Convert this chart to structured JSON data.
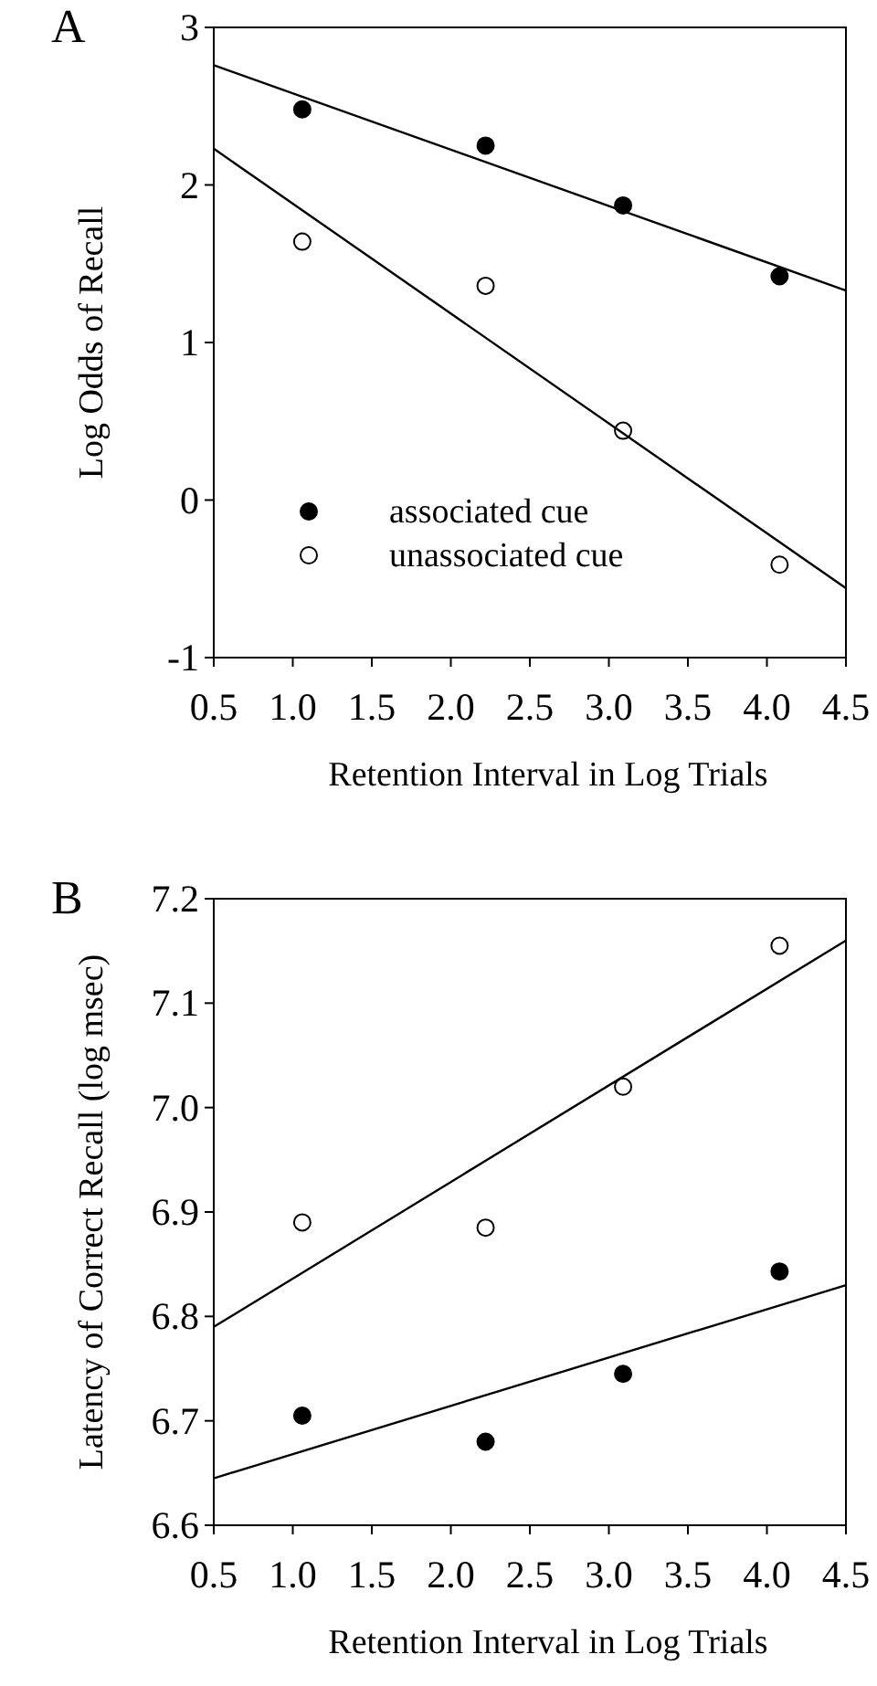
{
  "chart_data": [
    {
      "type": "scatter",
      "title": "A",
      "xlabel": "Retention Interval in Log Trials",
      "ylabel": "Log Odds of Recall",
      "xlim": [
        0.5,
        4.5
      ],
      "xticks": [
        0.5,
        {
          "value": 1,
          "label": "1.0"
        },
        1.5,
        {
          "value": 2,
          "label": "2.0"
        },
        2.5,
        {
          "value": 3,
          "label": "3.0"
        },
        3.5,
        {
          "value": 4,
          "label": "4.0"
        },
        4.5
      ],
      "ylim": [
        -1,
        3
      ],
      "yticks": [
        -1,
        0,
        1,
        2,
        3
      ],
      "grid": false,
      "legend": "bottom left",
      "marker": "circle",
      "series": [
        {
          "name": "associated cue",
          "color": "#000000",
          "x": [
            1.06,
            2.22,
            3.09,
            4.08
          ],
          "values": [
            2.48,
            2.25,
            1.87,
            1.42
          ]
        },
        {
          "name": "unassociated cue",
          "color": "#ffffff",
          "x": [
            1.06,
            2.22,
            3.09,
            4.08
          ],
          "values": [
            1.64,
            1.36,
            0.44,
            -0.41
          ]
        },
        {
          "type": "line",
          "color": "#000000",
          "marker": "none",
          "line_style": "solid",
          "x": [
            0.5,
            4.5
          ],
          "values": [
            2.76,
            1.33
          ]
        },
        {
          "type": "line",
          "color": "#000000",
          "marker": "none",
          "line_style": "solid",
          "x": [
            0.5,
            4.5
          ],
          "values": [
            2.23,
            -0.56
          ]
        }
      ]
    },
    {
      "type": "scatter",
      "title": "B",
      "xlabel": "Retention Interval in Log Trials",
      "ylabel": "Latency of Correct Recall (log msec)",
      "xlim": [
        0.5,
        4.5
      ],
      "xticks": [
        0.5,
        {
          "value": 1,
          "label": "1.0"
        },
        1.5,
        {
          "value": 2,
          "label": "2.0"
        },
        2.5,
        {
          "value": 3,
          "label": "3.0"
        },
        3.5,
        {
          "value": 4,
          "label": "4.0"
        },
        4.5
      ],
      "ylim": [
        6.6,
        7.2
      ],
      "yticks": [
        6.6,
        6.7,
        6.8,
        6.9,
        {
          "value": 7,
          "label": "7.0"
        },
        7.1,
        7.2
      ],
      "grid": false,
      "legend": false,
      "marker": "circle",
      "series": [
        {
          "color": "#000000",
          "x": [
            1.06,
            2.22,
            3.09,
            4.08
          ],
          "values": [
            6.705,
            6.68,
            6.745,
            6.843
          ]
        },
        {
          "color": "#ffffff",
          "x": [
            1.06,
            2.22,
            3.09,
            4.08
          ],
          "values": [
            6.89,
            6.885,
            7.02,
            7.155
          ]
        },
        {
          "type": "line",
          "color": "#000000",
          "marker": "none",
          "line_style": "solid",
          "x": [
            0.5,
            4.5
          ],
          "values": [
            6.645,
            6.83
          ]
        },
        {
          "type": "line",
          "color": "#000000",
          "marker": "none",
          "line_style": "solid",
          "x": [
            0.5,
            4.5
          ],
          "values": [
            6.79,
            7.16
          ]
        }
      ]
    }
  ]
}
